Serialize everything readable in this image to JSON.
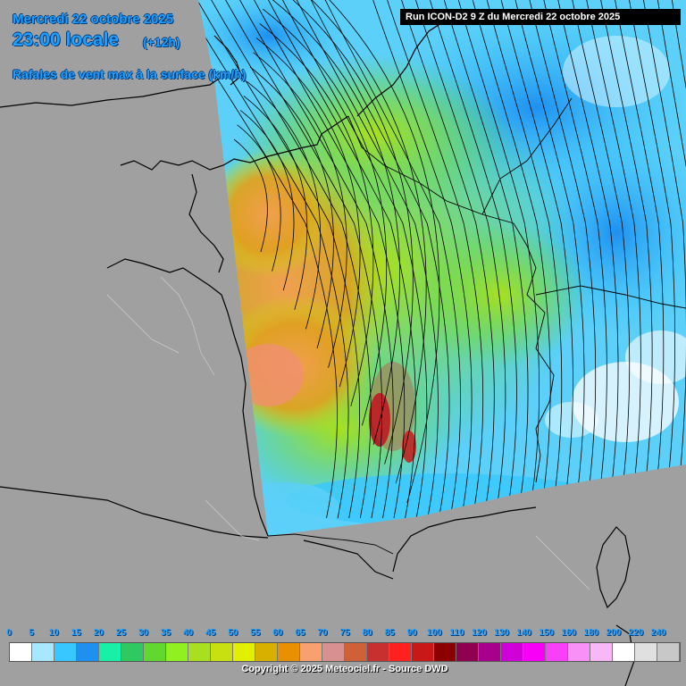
{
  "header": {
    "date": "Mercredi 22 octobre 2025",
    "local_time": "23:00 locale",
    "lead": "(+12h)",
    "parameter": "Rafales de vent max à la surface (km/h)"
  },
  "run_info": "Run ICON-D2 9 Z du Mercredi 22 octobre 2025",
  "legend": {
    "ticks": [
      "0",
      "5",
      "10",
      "15",
      "20",
      "25",
      "30",
      "35",
      "40",
      "45",
      "50",
      "55",
      "60",
      "65",
      "70",
      "75",
      "80",
      "85",
      "90",
      "100",
      "110",
      "120",
      "130",
      "140",
      "150",
      "160",
      "180",
      "200",
      "220",
      "240"
    ],
    "colors": [
      "#ffffff",
      "#a8e8ff",
      "#38c8ff",
      "#1e90f0",
      "#18f0a8",
      "#30c860",
      "#60d830",
      "#90f020",
      "#a8e020",
      "#c8e010",
      "#e0f000",
      "#d8b000",
      "#e89000",
      "#f8a070",
      "#d89090",
      "#d06038",
      "#c83030",
      "#ff2020",
      "#c81818",
      "#8c0000",
      "#900050",
      "#a8008c",
      "#d000d8",
      "#f800f8",
      "#f840f8",
      "#f890f8",
      "#f8b8f8",
      "#ffffff",
      "#e0e0e0",
      "#c8c8c8"
    ]
  },
  "copyright": "Copyright © 2025 Meteociel.fr - Source DWD",
  "colors": {
    "land": "#a0a0a0",
    "title_blue": "#1fa0ff",
    "border": "#000000"
  }
}
